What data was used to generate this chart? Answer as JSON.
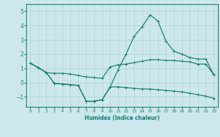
{
  "title": "",
  "xlabel": "Humidex (Indice chaleur)",
  "bg_color": "#cce8ec",
  "line_color": "#1a7a72",
  "grid_color": "#aed4d8",
  "xlim": [
    -0.5,
    23.5
  ],
  "ylim": [
    -1.7,
    5.5
  ],
  "yticks": [
    -1,
    0,
    1,
    2,
    3,
    4,
    5
  ],
  "xticks": [
    0,
    1,
    2,
    3,
    4,
    5,
    6,
    7,
    8,
    9,
    10,
    11,
    12,
    13,
    14,
    15,
    16,
    17,
    18,
    19,
    20,
    21,
    22,
    23
  ],
  "line1_x": [
    0,
    1,
    2,
    3,
    4,
    5,
    6,
    7,
    8,
    9,
    10,
    11,
    12,
    13,
    14,
    15,
    16,
    17,
    18,
    19,
    20,
    21,
    22,
    23
  ],
  "line1_y": [
    1.35,
    1.05,
    0.7,
    0.65,
    0.65,
    0.6,
    0.5,
    0.4,
    0.35,
    0.3,
    1.1,
    1.25,
    1.3,
    1.4,
    1.5,
    1.6,
    1.6,
    1.55,
    1.55,
    1.5,
    1.45,
    1.3,
    1.3,
    0.55
  ],
  "line2_x": [
    0,
    1,
    2,
    3,
    4,
    5,
    6,
    7,
    8,
    9,
    10,
    11,
    12,
    13,
    14,
    15,
    16,
    17,
    18,
    19,
    20,
    21,
    22,
    23
  ],
  "line2_y": [
    1.35,
    1.05,
    0.7,
    -0.05,
    -0.1,
    -0.15,
    -0.2,
    -1.3,
    -1.3,
    -1.2,
    -0.3,
    -0.3,
    -0.35,
    -0.4,
    -0.45,
    -0.45,
    -0.5,
    -0.55,
    -0.6,
    -0.65,
    -0.75,
    -0.85,
    -0.95,
    -1.1
  ],
  "line3_x": [
    0,
    1,
    2,
    3,
    4,
    5,
    6,
    7,
    8,
    9,
    10,
    11,
    12,
    13,
    14,
    15,
    16,
    17,
    18,
    19,
    20,
    21,
    22,
    23
  ],
  "line3_y": [
    1.35,
    1.05,
    0.7,
    -0.05,
    -0.1,
    -0.15,
    -0.2,
    -1.3,
    -1.3,
    -1.2,
    -0.3,
    0.9,
    2.0,
    3.25,
    3.9,
    4.75,
    4.3,
    2.9,
    2.2,
    2.0,
    1.75,
    1.65,
    1.65,
    0.55
  ]
}
